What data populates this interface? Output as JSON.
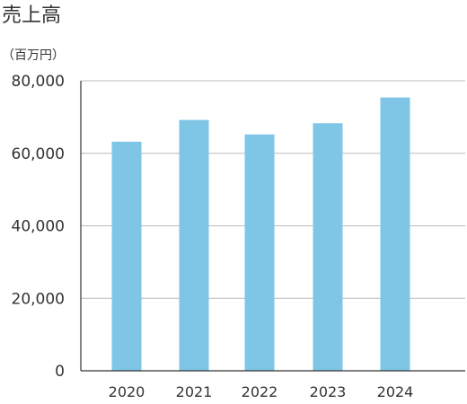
{
  "chart_data": {
    "type": "bar",
    "title": "売上高",
    "unit_label": "（百万円）",
    "categories": [
      "2020",
      "2021",
      "2022",
      "2023",
      "2024"
    ],
    "values": [
      63200,
      69200,
      65200,
      68300,
      75400
    ],
    "ylim": [
      0,
      80000
    ],
    "yticks": [
      0,
      20000,
      40000,
      60000,
      80000
    ],
    "ytick_labels": [
      "0",
      "20,000",
      "40,000",
      "60,000",
      "80,000"
    ],
    "grid": true,
    "legend": "none",
    "bar_color": "#7fc6e6",
    "grid_color": "#bbbbbb",
    "axis_color": "#333333"
  }
}
